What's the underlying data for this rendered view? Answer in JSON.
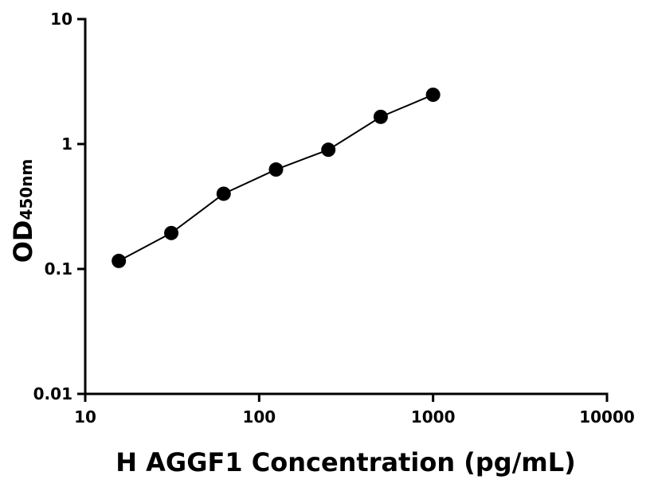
{
  "chart_data": {
    "type": "scatter",
    "xlabel": "H AGGF1 Concentration (pg/mL)",
    "ylabel": "OD",
    "ylabel_sub": "450nm",
    "x": [
      15.6,
      31.25,
      62.5,
      125,
      250,
      500,
      1000
    ],
    "values": [
      0.116,
      0.194,
      0.4,
      0.625,
      0.9,
      1.65,
      2.48
    ],
    "color": "#000000",
    "line": true,
    "xscale": "log",
    "yscale": "log",
    "xlim": [
      10,
      10000
    ],
    "ylim": [
      0.01,
      10
    ],
    "xticks": [
      10,
      100,
      1000,
      10000
    ],
    "yticks": [
      0.01,
      0.1,
      1,
      10
    ]
  }
}
